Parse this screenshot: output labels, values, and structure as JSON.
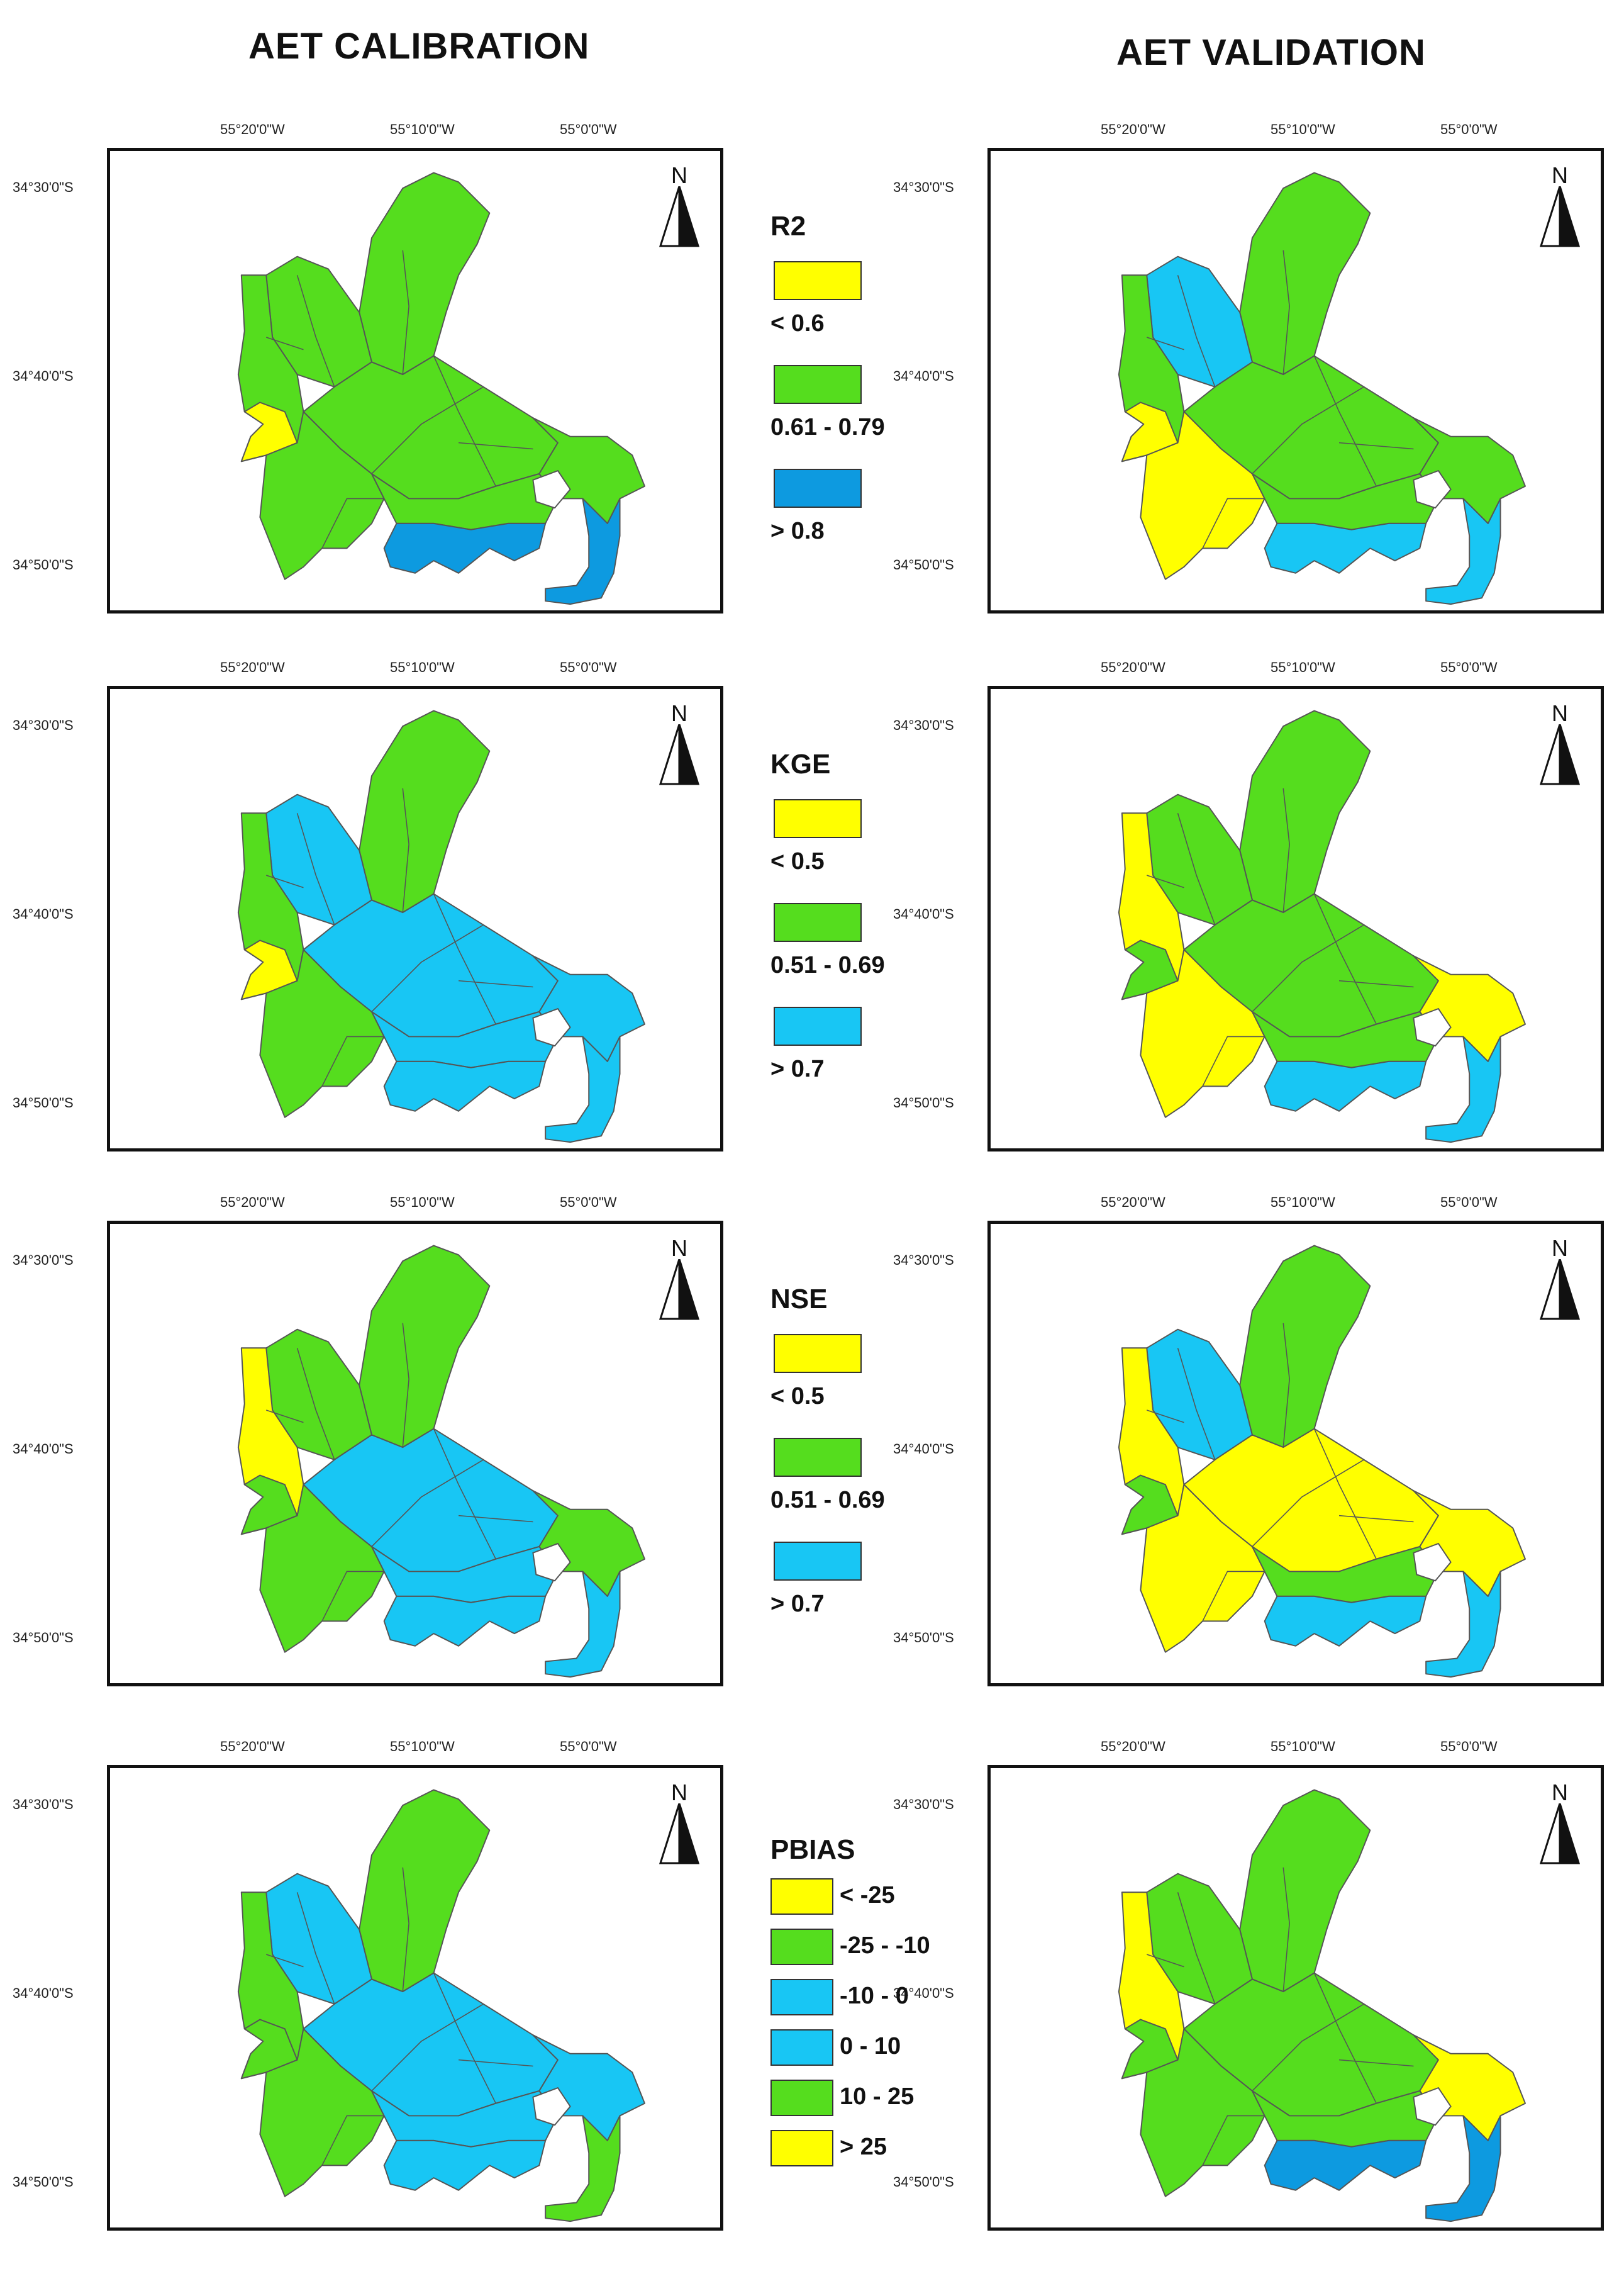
{
  "titles": {
    "calibration": "AET CALIBRATION",
    "validation": "AET VALIDATION"
  },
  "coords": {
    "lon": [
      "55°20'0\"W",
      "55°10'0\"W",
      "55°0'0\"W"
    ],
    "lat": [
      "34°30'0\"S",
      "34°40'0\"S",
      "34°50'0\"S"
    ],
    "north": "N"
  },
  "colors": {
    "yellow": "#ffff00",
    "green": "#55dd1e",
    "light_blue": "#18c6f4",
    "dark_blue": "#0d9ae0",
    "lake": "#ffffff",
    "boundary": "#555555"
  },
  "rows": [
    {
      "metric": "R2",
      "legend": [
        {
          "label": "< 0.6",
          "color": "yellow"
        },
        {
          "label": "0.61 - 0.79",
          "color": "green"
        },
        {
          "label": "> 0.8",
          "color": "dark_blue"
        }
      ],
      "calibration": {
        "west": "green",
        "northwest": "green",
        "north": "green",
        "central": "green",
        "small_west": "yellow",
        "east": "green",
        "south_west": "green",
        "south_central": "green",
        "coast": "dark_blue",
        "east_coast": "dark_blue"
      },
      "validation": {
        "west": "green",
        "northwest": "light_blue",
        "north": "green",
        "central": "green",
        "small_west": "yellow",
        "east": "green",
        "south_west": "yellow",
        "south_central": "green",
        "coast": "light_blue",
        "east_coast": "light_blue"
      }
    },
    {
      "metric": "KGE",
      "legend": [
        {
          "label": "< 0.5",
          "color": "yellow"
        },
        {
          "label": "0.51 - 0.69",
          "color": "green"
        },
        {
          "label": "> 0.7",
          "color": "light_blue"
        }
      ],
      "calibration": {
        "west": "green",
        "northwest": "light_blue",
        "north": "green",
        "central": "light_blue",
        "small_west": "yellow",
        "east": "light_blue",
        "south_west": "green",
        "south_central": "light_blue",
        "coast": "light_blue",
        "east_coast": "light_blue"
      },
      "validation": {
        "west": "yellow",
        "northwest": "green",
        "north": "green",
        "central": "green",
        "small_west": "green",
        "east": "yellow",
        "south_west": "yellow",
        "south_central": "green",
        "coast": "light_blue",
        "east_coast": "light_blue"
      }
    },
    {
      "metric": "NSE",
      "legend": [
        {
          "label": "< 0.5",
          "color": "yellow"
        },
        {
          "label": "0.51 - 0.69",
          "color": "green"
        },
        {
          "label": "> 0.7",
          "color": "light_blue"
        }
      ],
      "calibration": {
        "west": "yellow",
        "northwest": "green",
        "north": "green",
        "central": "light_blue",
        "small_west": "green",
        "east": "green",
        "south_west": "green",
        "south_central": "light_blue",
        "coast": "light_blue",
        "east_coast": "light_blue"
      },
      "validation": {
        "west": "yellow",
        "northwest": "light_blue",
        "north": "green",
        "central": "yellow",
        "small_west": "green",
        "east": "yellow",
        "south_west": "yellow",
        "south_central": "green",
        "coast": "light_blue",
        "east_coast": "light_blue"
      }
    },
    {
      "metric": "PBIAS",
      "legend": [
        {
          "label": "< -25",
          "color": "yellow"
        },
        {
          "label": "-25 - -10",
          "color": "green"
        },
        {
          "label": "-10 - 0",
          "color": "light_blue"
        },
        {
          "label": "0 - 10",
          "color": "light_blue"
        },
        {
          "label": "10 - 25",
          "color": "green"
        },
        {
          "label": "> 25",
          "color": "yellow"
        }
      ],
      "calibration": {
        "west": "green",
        "northwest": "light_blue",
        "north": "green",
        "central": "light_blue",
        "small_west": "green",
        "east": "light_blue",
        "south_west": "green",
        "south_central": "light_blue",
        "coast": "light_blue",
        "east_coast": "green"
      },
      "validation": {
        "west": "yellow",
        "northwest": "green",
        "north": "green",
        "central": "green",
        "small_west": "green",
        "east": "yellow",
        "south_west": "green",
        "south_central": "green",
        "coast": "dark_blue",
        "east_coast": "dark_blue"
      }
    }
  ]
}
